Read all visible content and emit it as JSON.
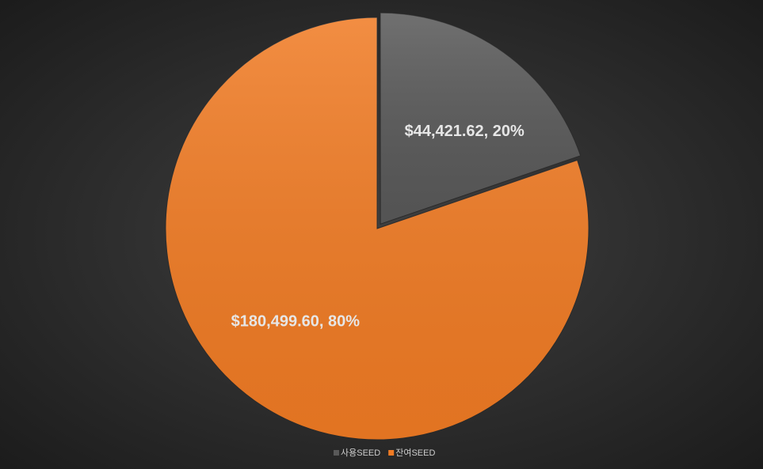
{
  "chart_data": {
    "type": "pie",
    "categories": [
      "사용SEED",
      "잔여SEED"
    ],
    "values": [
      44421.62,
      180499.6
    ],
    "value_labels": [
      "$44,421.62, 20%",
      "$180,499.60, 80%"
    ],
    "colors": [
      "#595959",
      "#f07b24"
    ],
    "legend": "bottom"
  }
}
